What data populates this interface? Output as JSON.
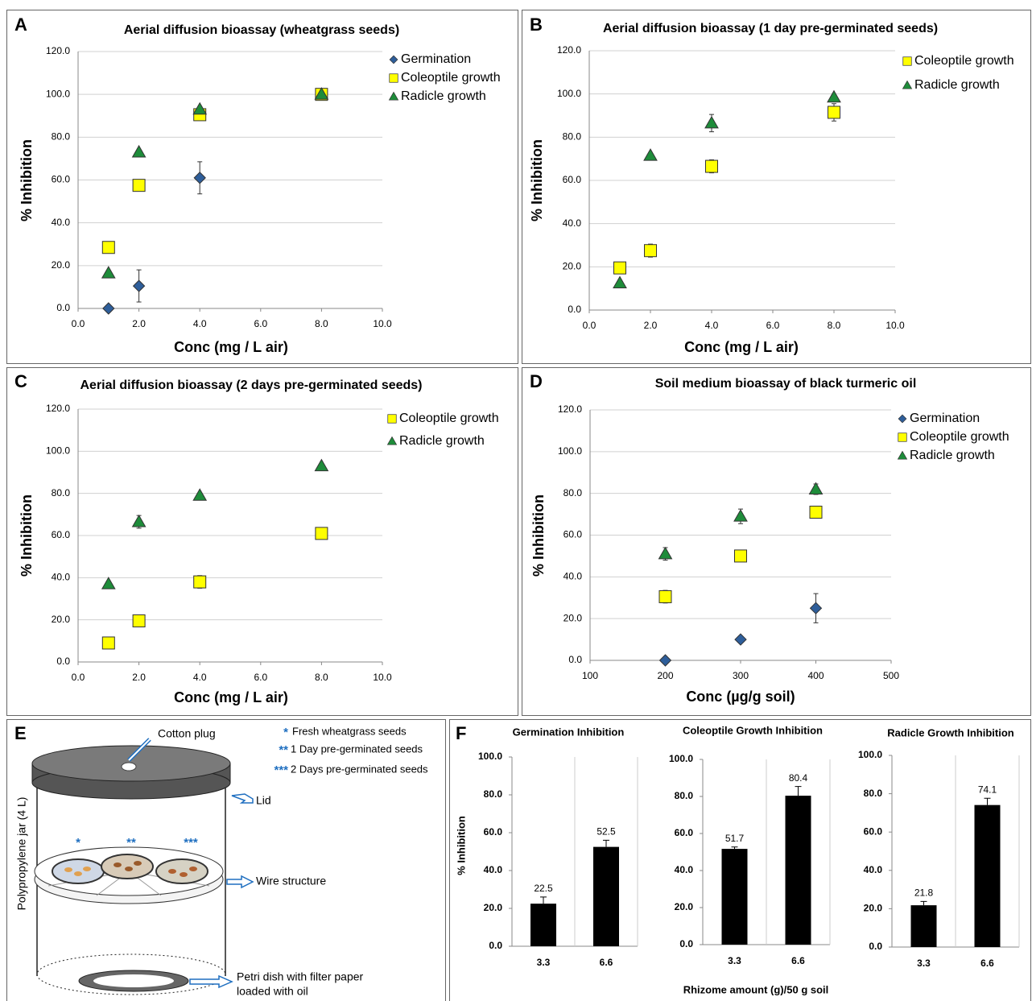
{
  "chart_data": [
    {
      "type": "scatter",
      "panel": "A",
      "title": "Aerial diffusion bioassay  (wheatgrass seeds)",
      "xlabel": "Conc (mg / L air)",
      "ylabel": "% Inhibition",
      "x": [
        1,
        2,
        4,
        8
      ],
      "xlim": [
        0,
        10
      ],
      "xticks": [
        {
          "value": 0,
          "label": "0.0"
        },
        {
          "value": 2,
          "label": "2.0"
        },
        {
          "value": 4,
          "label": "4.0"
        },
        {
          "value": 6,
          "label": "6.0"
        },
        {
          "value": 8,
          "label": "8.0"
        },
        {
          "value": 10,
          "label": "10.0"
        }
      ],
      "ylim": [
        0,
        120
      ],
      "yticks": [
        {
          "value": 0,
          "label": "0.0"
        },
        {
          "value": 20,
          "label": "20.0"
        },
        {
          "value": 40,
          "label": "40.0"
        },
        {
          "value": 60,
          "label": "60.0"
        },
        {
          "value": 80,
          "label": "80.0"
        },
        {
          "value": 100,
          "label": "100.0"
        },
        {
          "value": 120,
          "label": "120.0"
        }
      ],
      "grid": true,
      "legend": "right",
      "series": [
        {
          "name": "Germination",
          "color": "#2e5e9a",
          "marker": "diamond",
          "values": [
            0,
            10.5,
            61,
            100
          ],
          "errors": [
            0,
            7.5,
            7.5,
            0
          ]
        },
        {
          "name": "Coleoptile growth",
          "color": "#ffff00",
          "marker": "square",
          "values": [
            28.5,
            57.5,
            90.5,
            100
          ],
          "errors": [
            0,
            0,
            0,
            0
          ]
        },
        {
          "name": "Radicle growth",
          "color": "#1e8c3a",
          "marker": "triangle",
          "values": [
            16.5,
            73,
            93,
            100
          ],
          "errors": [
            0,
            0,
            0,
            0
          ]
        }
      ]
    },
    {
      "type": "scatter",
      "panel": "B",
      "title": "Aerial diffusion bioassay  (1 day pre-germinated seeds)",
      "xlabel": "Conc (mg / L air)",
      "ylabel": "% Inhibition",
      "x": [
        1,
        2,
        4,
        8
      ],
      "xlim": [
        0,
        10
      ],
      "xticks": [
        {
          "value": 0,
          "label": "0.0"
        },
        {
          "value": 2,
          "label": "2.0"
        },
        {
          "value": 4,
          "label": "4.0"
        },
        {
          "value": 6,
          "label": "6.0"
        },
        {
          "value": 8,
          "label": "8.0"
        },
        {
          "value": 10,
          "label": "10.0"
        }
      ],
      "ylim": [
        0,
        120
      ],
      "yticks": [
        {
          "value": 0,
          "label": "0.0"
        },
        {
          "value": 20,
          "label": "20.0"
        },
        {
          "value": 40,
          "label": "40.0"
        },
        {
          "value": 60,
          "label": "60.0"
        },
        {
          "value": 80,
          "label": "80.0"
        },
        {
          "value": 100,
          "label": "100.0"
        },
        {
          "value": 120,
          "label": "120.0"
        }
      ],
      "grid": true,
      "legend": "right",
      "series": [
        {
          "name": "Coleoptile growth",
          "color": "#ffff00",
          "marker": "square",
          "values": [
            19.5,
            27.5,
            66.5,
            91.5
          ],
          "errors": [
            0,
            3,
            3,
            4
          ]
        },
        {
          "name": "Radicle growth",
          "color": "#1e8c3a",
          "marker": "triangle",
          "values": [
            12.5,
            71.5,
            86.5,
            98.5
          ],
          "errors": [
            0,
            0,
            4,
            0
          ]
        }
      ]
    },
    {
      "type": "scatter",
      "panel": "C",
      "title": "Aerial diffusion bioassay (2 days pre-germinated seeds)",
      "xlabel": "Conc (mg / L air)",
      "ylabel": "% Inhibition",
      "x": [
        1,
        2,
        4,
        8
      ],
      "xlim": [
        0,
        10
      ],
      "xticks": [
        {
          "value": 0,
          "label": "0.0"
        },
        {
          "value": 2,
          "label": "2.0"
        },
        {
          "value": 4,
          "label": "4.0"
        },
        {
          "value": 6,
          "label": "6.0"
        },
        {
          "value": 8,
          "label": "8.0"
        },
        {
          "value": 10,
          "label": "10.0"
        }
      ],
      "ylim": [
        0,
        120
      ],
      "yticks": [
        {
          "value": 0,
          "label": "0.0"
        },
        {
          "value": 20,
          "label": "20.0"
        },
        {
          "value": 40,
          "label": "40.0"
        },
        {
          "value": 60,
          "label": "60.0"
        },
        {
          "value": 80,
          "label": "80.0"
        },
        {
          "value": 100,
          "label": "100.0"
        },
        {
          "value": 120,
          "label": "120.0"
        }
      ],
      "grid": true,
      "legend": "right",
      "series": [
        {
          "name": "Coleoptile growth",
          "color": "#ffff00",
          "marker": "square",
          "values": [
            9,
            19.5,
            38,
            61
          ],
          "errors": [
            0,
            0,
            3,
            0
          ]
        },
        {
          "name": "Radicle growth",
          "color": "#1e8c3a",
          "marker": "triangle",
          "values": [
            37,
            66.5,
            79,
            93
          ],
          "errors": [
            0,
            3,
            0,
            0
          ]
        }
      ]
    },
    {
      "type": "scatter",
      "panel": "D",
      "title": "Soil medium bioassay of black turmeric oil",
      "xlabel": "Conc (µg/g soil)",
      "ylabel": "% Inhibition",
      "x": [
        200,
        300,
        400
      ],
      "xlim": [
        100,
        500
      ],
      "xticks": [
        100,
        200,
        300,
        400,
        500
      ],
      "ylim": [
        0,
        120
      ],
      "yticks": [
        {
          "value": 0,
          "label": "0.0"
        },
        {
          "value": 20,
          "label": "20.0"
        },
        {
          "value": 40,
          "label": "40.0"
        },
        {
          "value": 60,
          "label": "60.0"
        },
        {
          "value": 80,
          "label": "80.0"
        },
        {
          "value": 100,
          "label": "100.0"
        },
        {
          "value": 120,
          "label": "120.0"
        }
      ],
      "grid": true,
      "legend": "right",
      "series": [
        {
          "name": "Germination",
          "color": "#2e5e9a",
          "marker": "diamond",
          "values": [
            0,
            10,
            25
          ],
          "errors": [
            0,
            0,
            7
          ]
        },
        {
          "name": "Coleoptile growth",
          "color": "#ffff00",
          "marker": "square",
          "values": [
            30.5,
            50,
            71
          ],
          "errors": [
            3,
            0,
            0
          ]
        },
        {
          "name": "Radicle growth",
          "color": "#1e8c3a",
          "marker": "triangle",
          "values": [
            51,
            69,
            82
          ],
          "errors": [
            3,
            3.5,
            2.5
          ]
        }
      ]
    },
    {
      "type": "bar",
      "panel": "F",
      "title": "Germination Inhibition",
      "ylabel": "% Inhibition",
      "categories": [
        "3.3",
        "6.6"
      ],
      "values": [
        22.5,
        52.5
      ],
      "errors": [
        3.5,
        3.5
      ],
      "color": "#000000",
      "ylim": [
        0,
        100
      ],
      "yticks": [
        {
          "value": 0,
          "label": "0.0"
        },
        {
          "value": 20,
          "label": "20.0"
        },
        {
          "value": 40,
          "label": "40.0"
        },
        {
          "value": 60,
          "label": "60.0"
        },
        {
          "value": 80,
          "label": "80.0"
        },
        {
          "value": 100,
          "label": "100.0"
        }
      ],
      "grid": false
    },
    {
      "type": "bar",
      "title": "Coleoptile Growth Inhibition",
      "xlabel": "Rhizome amount (g)/50 g soil",
      "categories": [
        "3.3",
        "6.6"
      ],
      "values": [
        51.7,
        80.4
      ],
      "errors": [
        1,
        5
      ],
      "color": "#000000",
      "ylim": [
        0,
        100
      ],
      "yticks": [
        {
          "value": 0,
          "label": "0.0"
        },
        {
          "value": 20,
          "label": "20.0"
        },
        {
          "value": 40,
          "label": "40.0"
        },
        {
          "value": 60,
          "label": "60.0"
        },
        {
          "value": 80,
          "label": "80.0"
        },
        {
          "value": 100,
          "label": "100.0"
        }
      ],
      "grid": false
    },
    {
      "type": "bar",
      "title": "Radicle Growth Inhibition",
      "categories": [
        "3.3",
        "6.6"
      ],
      "values": [
        21.8,
        74.1
      ],
      "errors": [
        2,
        3.5
      ],
      "color": "#000000",
      "ylim": [
        0,
        100
      ],
      "yticks": [
        {
          "value": 0,
          "label": "0.0"
        },
        {
          "value": 20,
          "label": "20.0"
        },
        {
          "value": 40,
          "label": "40.0"
        },
        {
          "value": 60,
          "label": "60.0"
        },
        {
          "value": 80,
          "label": "80.0"
        },
        {
          "value": 100,
          "label": "100.0"
        }
      ],
      "grid": false
    }
  ],
  "diagram": {
    "panel": "E",
    "cotton_plug": "Cotton plug",
    "lid": "Lid",
    "jar": "Polypropylene jar (4 L)",
    "wire": "Wire structure",
    "petri": [
      "Petri dish with filter paper",
      "loaded with oil"
    ],
    "key": [
      {
        "marker": "*",
        "text": "Fresh wheatgrass seeds"
      },
      {
        "marker": "**",
        "text": "1 Day pre-germinated seeds"
      },
      {
        "marker": "***",
        "text": "2 Days pre-germinated seeds"
      }
    ]
  }
}
